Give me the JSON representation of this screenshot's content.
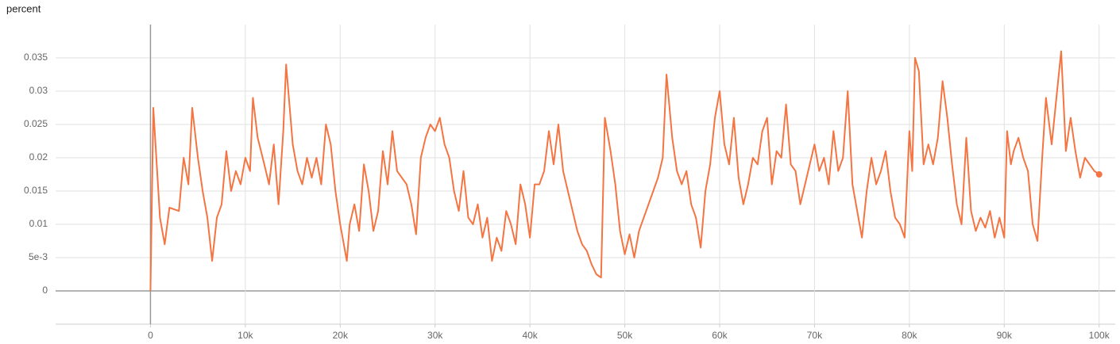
{
  "chart_data": {
    "type": "line",
    "title": "percent",
    "x": [
      0,
      300,
      1000,
      1500,
      2000,
      3000,
      3500,
      4000,
      4400,
      5000,
      5500,
      6000,
      6500,
      7000,
      7500,
      8000,
      8500,
      9000,
      9500,
      10000,
      10500,
      10800,
      11300,
      12000,
      12500,
      13000,
      13500,
      14000,
      14300,
      15000,
      15500,
      16000,
      16500,
      17000,
      17500,
      18000,
      18500,
      19000,
      19500,
      20000,
      20700,
      21000,
      21500,
      22000,
      22500,
      23000,
      23500,
      24000,
      24500,
      25000,
      25500,
      26000,
      26500,
      27000,
      27500,
      28000,
      28500,
      29000,
      29500,
      30000,
      30500,
      31000,
      31500,
      32000,
      32500,
      33000,
      33500,
      34000,
      34500,
      35000,
      35500,
      36000,
      36500,
      37000,
      37500,
      38000,
      38500,
      39000,
      39500,
      40000,
      40500,
      41000,
      41500,
      42000,
      42500,
      43000,
      43500,
      44000,
      44500,
      45000,
      45500,
      46000,
      46500,
      47000,
      47500,
      47900,
      48500,
      49000,
      49500,
      50000,
      50500,
      51000,
      51500,
      52000,
      52500,
      53000,
      53500,
      54000,
      54400,
      55000,
      55500,
      56000,
      56500,
      57000,
      57500,
      58000,
      58500,
      59000,
      59500,
      60000,
      60500,
      61000,
      61500,
      62000,
      62500,
      63000,
      63500,
      64000,
      64500,
      65000,
      65500,
      66000,
      66500,
      67000,
      67500,
      68000,
      68500,
      69000,
      69500,
      70000,
      70500,
      71000,
      71500,
      72000,
      72500,
      73000,
      73500,
      74000,
      74500,
      75000,
      75500,
      76000,
      76500,
      77000,
      77500,
      78000,
      78500,
      79000,
      79500,
      80000,
      80300,
      80600,
      81000,
      81500,
      82000,
      82500,
      83000,
      83500,
      84000,
      84500,
      85000,
      85500,
      86000,
      86500,
      87000,
      87500,
      88000,
      88500,
      89000,
      89500,
      90000,
      90300,
      90700,
      91000,
      91500,
      92000,
      92500,
      93000,
      93500,
      94000,
      94400,
      95000,
      95500,
      96000,
      96500,
      97000,
      97500,
      98000,
      98500,
      99000,
      99500,
      100000
    ],
    "series": [
      {
        "color": "#f47442",
        "values": [
          0,
          0.0275,
          0.011,
          0.007,
          0.0125,
          0.012,
          0.02,
          0.016,
          0.0275,
          0.02,
          0.015,
          0.011,
          0.0045,
          0.011,
          0.013,
          0.021,
          0.015,
          0.018,
          0.016,
          0.02,
          0.018,
          0.029,
          0.023,
          0.019,
          0.016,
          0.022,
          0.013,
          0.024,
          0.034,
          0.022,
          0.018,
          0.016,
          0.02,
          0.017,
          0.02,
          0.016,
          0.025,
          0.022,
          0.015,
          0.01,
          0.0045,
          0.01,
          0.013,
          0.009,
          0.019,
          0.015,
          0.009,
          0.012,
          0.021,
          0.016,
          0.024,
          0.018,
          0.017,
          0.016,
          0.013,
          0.0085,
          0.02,
          0.023,
          0.025,
          0.024,
          0.026,
          0.022,
          0.02,
          0.015,
          0.012,
          0.018,
          0.011,
          0.01,
          0.013,
          0.008,
          0.011,
          0.0045,
          0.008,
          0.006,
          0.012,
          0.01,
          0.007,
          0.016,
          0.013,
          0.008,
          0.016,
          0.016,
          0.018,
          0.024,
          0.019,
          0.025,
          0.018,
          0.015,
          0.012,
          0.009,
          0.007,
          0.006,
          0.004,
          0.0025,
          0.002,
          0.026,
          0.021,
          0.016,
          0.009,
          0.0055,
          0.0085,
          0.005,
          0.009,
          0.011,
          0.013,
          0.015,
          0.017,
          0.02,
          0.0325,
          0.023,
          0.018,
          0.016,
          0.018,
          0.013,
          0.011,
          0.0065,
          0.015,
          0.019,
          0.026,
          0.03,
          0.022,
          0.019,
          0.026,
          0.017,
          0.013,
          0.016,
          0.02,
          0.019,
          0.024,
          0.026,
          0.016,
          0.021,
          0.02,
          0.028,
          0.019,
          0.018,
          0.013,
          0.016,
          0.019,
          0.022,
          0.018,
          0.02,
          0.016,
          0.024,
          0.018,
          0.02,
          0.03,
          0.016,
          0.012,
          0.008,
          0.015,
          0.02,
          0.016,
          0.018,
          0.021,
          0.015,
          0.011,
          0.01,
          0.008,
          0.024,
          0.018,
          0.035,
          0.033,
          0.019,
          0.022,
          0.019,
          0.023,
          0.0315,
          0.026,
          0.019,
          0.013,
          0.01,
          0.023,
          0.012,
          0.009,
          0.011,
          0.0095,
          0.012,
          0.008,
          0.011,
          0.008,
          0.024,
          0.019,
          0.021,
          0.023,
          0.02,
          0.018,
          0.01,
          0.0075,
          0.02,
          0.029,
          0.022,
          0.029,
          0.036,
          0.021,
          0.026,
          0.021,
          0.017,
          0.02,
          0.019,
          0.018,
          0.0175
        ]
      }
    ],
    "xlim": [
      -10000,
      101700
    ],
    "ylim": [
      -0.005,
      0.04
    ],
    "xticks": [
      0,
      {
        "value": 10000,
        "label": "10k"
      },
      {
        "value": 20000,
        "label": "20k"
      },
      {
        "value": 30000,
        "label": "30k"
      },
      {
        "value": 40000,
        "label": "40k"
      },
      {
        "value": 50000,
        "label": "50k"
      },
      {
        "value": 60000,
        "label": "60k"
      },
      {
        "value": 70000,
        "label": "70k"
      },
      {
        "value": 80000,
        "label": "80k"
      },
      {
        "value": 90000,
        "label": "90k"
      },
      {
        "value": 100000,
        "label": "100k"
      }
    ],
    "yticks": [
      0,
      {
        "value": 0.005,
        "label": "5e-3"
      },
      0.01,
      0.015,
      0.02,
      0.025,
      0.03,
      0.035
    ],
    "grid": true
  }
}
